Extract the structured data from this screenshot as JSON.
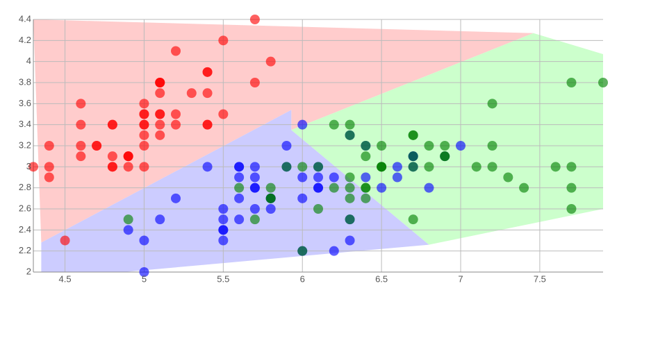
{
  "chart_data": {
    "type": "scatter",
    "xlim": [
      4.3,
      7.9
    ],
    "ylim": [
      2,
      4.4
    ],
    "xticks": [
      4.5,
      5,
      5.5,
      6,
      6.5,
      7,
      7.5
    ],
    "yticks": [
      2,
      2.2,
      2.4,
      2.6,
      2.8,
      3,
      3.2,
      3.4,
      3.6,
      3.8,
      4,
      4.2,
      4.4
    ],
    "grid": true,
    "regions": [
      {
        "color": "#ffcccc",
        "x": [
          4.3,
          7.46,
          5.93,
          5.93,
          4.35
        ],
        "y": [
          4.4,
          4.27,
          3.35,
          3.54,
          2.28
        ]
      },
      {
        "color": "#ccccff",
        "x": [
          4.35,
          5.93,
          5.93,
          6.8,
          4.35
        ],
        "y": [
          2.28,
          3.54,
          3.35,
          2.26,
          1.93
        ]
      },
      {
        "color": "#ccffcc",
        "x": [
          5.93,
          7.46,
          7.9,
          7.9,
          6.8
        ],
        "y": [
          3.35,
          4.27,
          4.07,
          2.6,
          2.26
        ]
      }
    ],
    "series": [
      {
        "color": "#ff0000",
        "x": [
          5.1,
          4.9,
          4.7,
          4.6,
          5.0,
          5.4,
          4.6,
          5.0,
          4.4,
          4.9,
          5.4,
          4.8,
          4.8,
          4.3,
          5.8,
          5.7,
          5.4,
          5.1,
          5.7,
          5.1,
          5.4,
          5.1,
          4.6,
          5.1,
          4.8,
          5.0,
          5.0,
          5.2,
          5.2,
          4.7,
          4.8,
          5.4,
          5.2,
          5.5,
          4.9,
          5.0,
          5.5,
          4.9,
          4.4,
          5.1,
          5.0,
          4.5,
          4.4,
          5.0,
          5.1,
          4.8,
          5.1,
          4.6,
          5.3,
          5.0
        ],
        "y": [
          3.5,
          3.0,
          3.2,
          3.1,
          3.6,
          3.9,
          3.4,
          3.4,
          2.9,
          3.1,
          3.7,
          3.4,
          3.0,
          3.0,
          4.0,
          4.4,
          3.9,
          3.5,
          3.8,
          3.8,
          3.4,
          3.7,
          3.6,
          3.3,
          3.4,
          3.0,
          3.4,
          3.5,
          3.4,
          3.2,
          3.1,
          3.4,
          4.1,
          4.2,
          3.1,
          3.2,
          3.5,
          3.1,
          3.0,
          3.4,
          3.5,
          2.3,
          3.2,
          3.5,
          3.8,
          3.0,
          3.8,
          3.2,
          3.7,
          3.3
        ]
      },
      {
        "color": "#0000ff",
        "x": [
          7.0,
          6.4,
          6.9,
          5.5,
          6.5,
          5.7,
          6.3,
          4.9,
          6.6,
          5.2,
          5.0,
          5.9,
          6.0,
          6.1,
          5.6,
          6.7,
          5.6,
          5.8,
          6.2,
          5.6,
          5.9,
          6.1,
          6.3,
          6.1,
          6.4,
          6.6,
          6.8,
          6.7,
          6.0,
          5.7,
          5.5,
          5.5,
          5.8,
          6.0,
          5.4,
          6.0,
          6.7,
          6.3,
          5.6,
          5.5,
          5.5,
          6.1,
          5.8,
          5.0,
          5.6,
          5.7,
          5.7,
          6.2,
          5.1,
          5.7
        ],
        "y": [
          3.2,
          3.2,
          3.1,
          2.3,
          2.8,
          2.8,
          3.3,
          2.4,
          2.9,
          2.7,
          2.0,
          3.0,
          2.2,
          2.9,
          2.9,
          3.1,
          3.0,
          2.7,
          2.2,
          2.5,
          3.2,
          2.8,
          2.5,
          2.8,
          2.9,
          3.0,
          2.8,
          3.0,
          2.9,
          2.6,
          2.4,
          2.4,
          2.7,
          2.7,
          3.0,
          3.4,
          3.1,
          2.3,
          3.0,
          2.5,
          2.6,
          3.0,
          2.6,
          2.3,
          2.7,
          3.0,
          2.9,
          2.9,
          2.5,
          2.8
        ]
      },
      {
        "color": "#008000",
        "x": [
          6.3,
          5.8,
          7.1,
          6.3,
          6.5,
          7.6,
          4.9,
          7.3,
          6.7,
          7.2,
          6.5,
          6.4,
          6.8,
          5.7,
          5.8,
          6.4,
          6.5,
          7.7,
          7.7,
          6.0,
          6.9,
          5.6,
          7.7,
          6.3,
          6.7,
          7.2,
          6.2,
          6.1,
          6.4,
          7.2,
          7.4,
          7.9,
          6.4,
          6.3,
          6.1,
          7.7,
          6.3,
          6.4,
          6.0,
          6.9,
          6.7,
          6.9,
          5.8,
          6.8,
          6.7,
          6.7,
          6.3,
          6.5,
          6.2,
          5.9
        ],
        "y": [
          3.3,
          2.7,
          3.0,
          2.9,
          3.0,
          3.0,
          2.5,
          2.9,
          2.5,
          3.6,
          3.2,
          2.7,
          3.0,
          2.5,
          2.8,
          3.2,
          3.0,
          3.8,
          2.6,
          2.2,
          3.2,
          2.8,
          2.8,
          2.7,
          3.3,
          3.2,
          2.8,
          3.0,
          2.8,
          3.0,
          2.8,
          3.8,
          2.8,
          2.8,
          2.6,
          3.0,
          3.4,
          3.1,
          3.0,
          3.1,
          3.1,
          3.1,
          2.7,
          3.2,
          3.3,
          3.0,
          2.5,
          3.0,
          3.4,
          3.0
        ]
      }
    ]
  }
}
